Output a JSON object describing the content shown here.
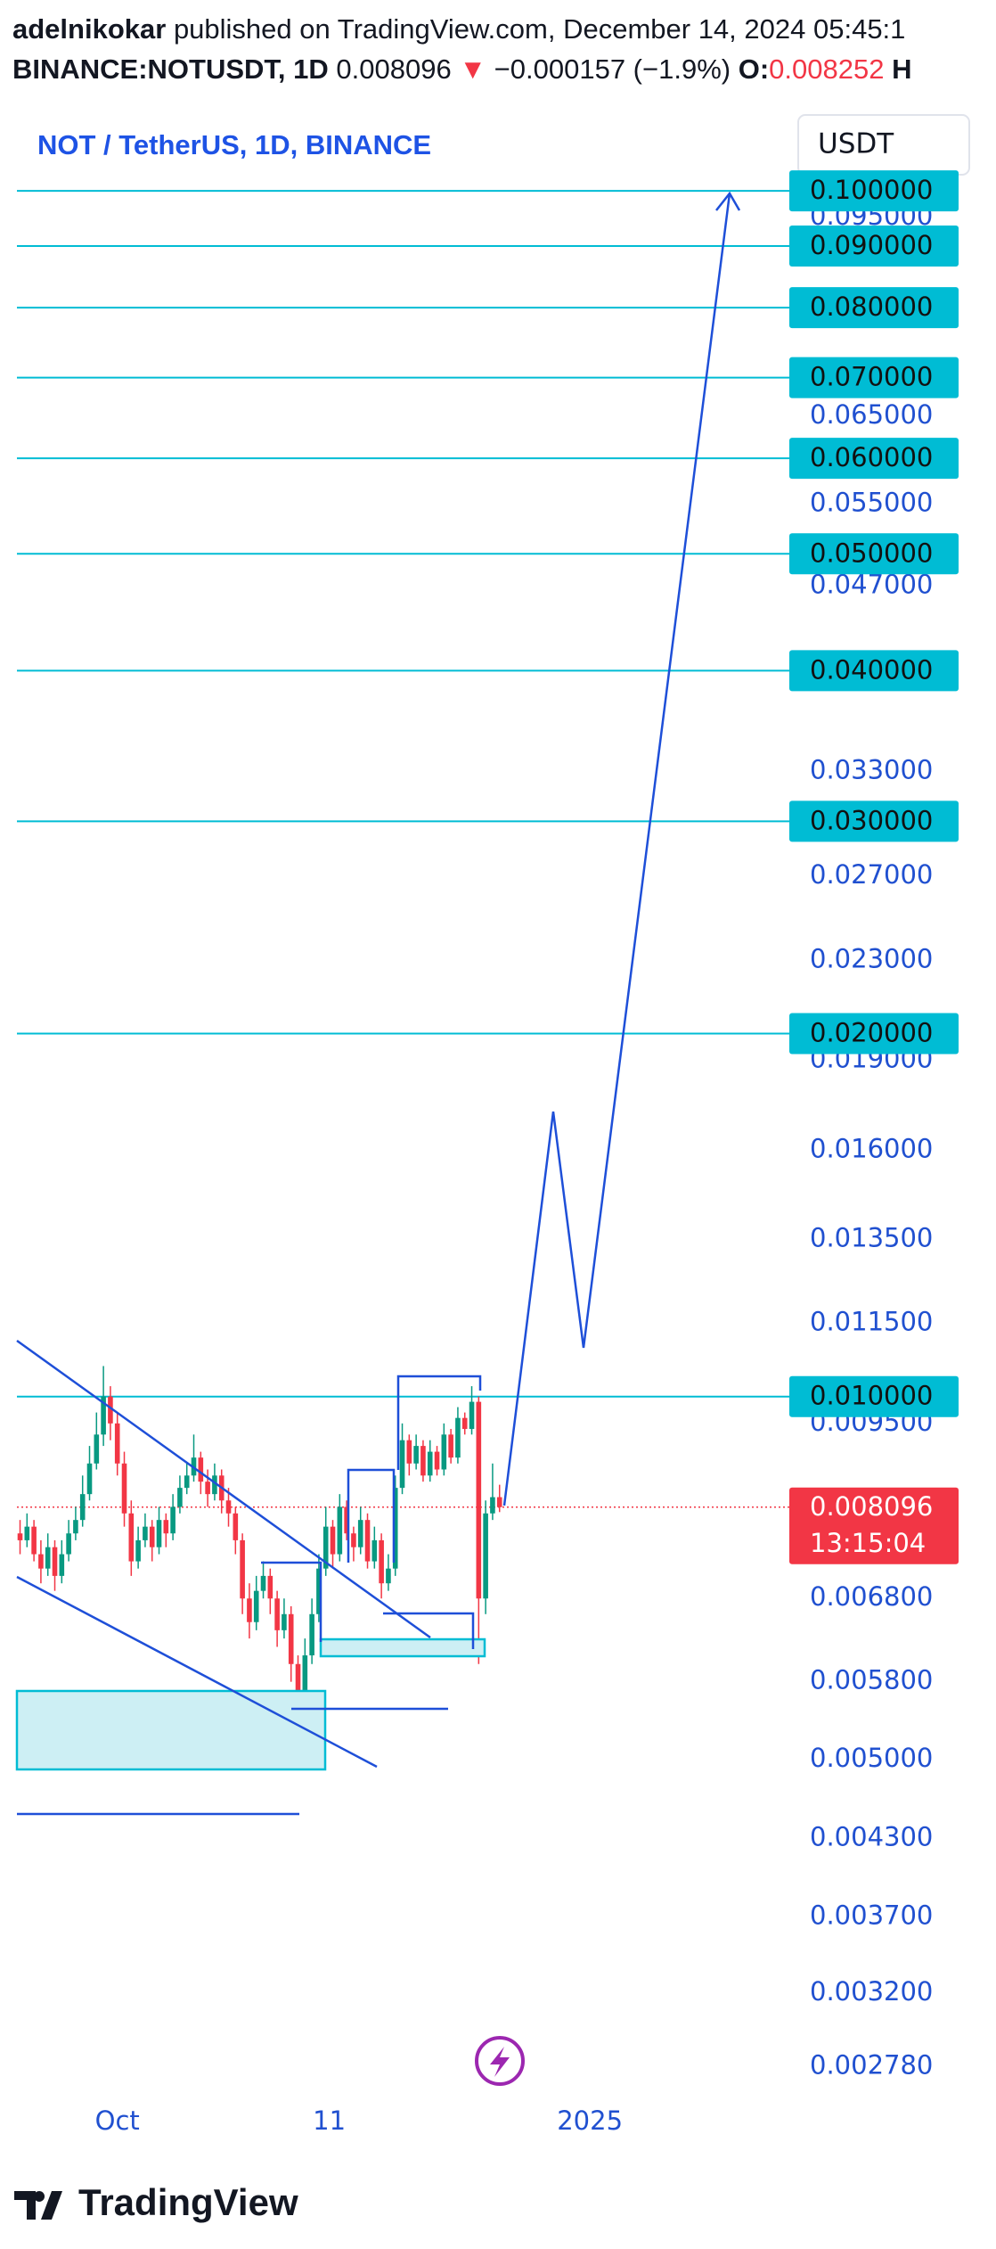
{
  "header": {
    "publisher": "adelnikokar",
    "published": "published on TradingView.com, December 14, 2024 05:45:1",
    "symbol": "BINANCE:NOTUSDT, 1D",
    "last": "0.008096",
    "direction": "▼",
    "change": "−0.000157 (−1.9%)",
    "open_label": "O:",
    "open": "0.008252",
    "high_label": "H"
  },
  "chart_data": {
    "type": "candlestick",
    "title": "NOT / TetherUS, 1D, BINANCE",
    "currency": "USDT",
    "log_scale": true,
    "up_color": "#089981",
    "down_color": "#f23645",
    "level_color": "#00bcd4",
    "ylim": [
      0.0026,
      0.115
    ],
    "yticks": [
      {
        "value": 0.095,
        "label": "0.095000"
      },
      {
        "value": 0.065,
        "label": "0.065000"
      },
      {
        "value": 0.055,
        "label": "0.055000"
      },
      {
        "value": 0.047,
        "label": "0.047000"
      },
      {
        "value": 0.033,
        "label": "0.033000"
      },
      {
        "value": 0.027,
        "label": "0.027000"
      },
      {
        "value": 0.023,
        "label": "0.023000"
      },
      {
        "value": 0.019,
        "label": "0.019000"
      },
      {
        "value": 0.016,
        "label": "0.016000"
      },
      {
        "value": 0.0135,
        "label": "0.013500"
      },
      {
        "value": 0.0115,
        "label": "0.011500"
      },
      {
        "value": 0.0095,
        "label": "0.009500"
      },
      {
        "value": 0.0068,
        "label": "0.006800"
      },
      {
        "value": 0.0058,
        "label": "0.005800"
      },
      {
        "value": 0.005,
        "label": "0.005000"
      },
      {
        "value": 0.0043,
        "label": "0.004300"
      },
      {
        "value": 0.0037,
        "label": "0.003700"
      },
      {
        "value": 0.0032,
        "label": "0.003200"
      },
      {
        "value": 0.00278,
        "label": "0.002780"
      }
    ],
    "levels": [
      {
        "value": 0.1,
        "label": "0.100000"
      },
      {
        "value": 0.09,
        "label": "0.090000"
      },
      {
        "value": 0.08,
        "label": "0.080000"
      },
      {
        "value": 0.07,
        "label": "0.070000"
      },
      {
        "value": 0.06,
        "label": "0.060000"
      },
      {
        "value": 0.05,
        "label": "0.050000"
      },
      {
        "value": 0.04,
        "label": "0.040000"
      },
      {
        "value": 0.03,
        "label": "0.030000"
      },
      {
        "value": 0.02,
        "label": "0.020000"
      },
      {
        "value": 0.01,
        "label": "0.010000"
      }
    ],
    "xlim": [
      -0.45,
      110.7
    ],
    "xticks": [
      {
        "value": 14,
        "label": "Oct"
      },
      {
        "value": 44.5,
        "label": "11"
      },
      {
        "value": 82,
        "label": "2025"
      }
    ],
    "candles": [
      [
        0.0077,
        0.0079,
        0.0074,
        0.0076
      ],
      [
        0.0076,
        0.008,
        0.0075,
        0.0078
      ],
      [
        0.0078,
        0.0079,
        0.0073,
        0.0074
      ],
      [
        0.0074,
        0.0076,
        0.007,
        0.0072
      ],
      [
        0.0072,
        0.0077,
        0.0071,
        0.0075
      ],
      [
        0.0075,
        0.0076,
        0.0069,
        0.0071
      ],
      [
        0.0071,
        0.0076,
        0.007,
        0.0074
      ],
      [
        0.0074,
        0.0079,
        0.0073,
        0.0077
      ],
      [
        0.0077,
        0.0081,
        0.0076,
        0.0079
      ],
      [
        0.0079,
        0.0086,
        0.0078,
        0.0083
      ],
      [
        0.0083,
        0.0091,
        0.0082,
        0.0088
      ],
      [
        0.0088,
        0.0097,
        0.0087,
        0.0093
      ],
      [
        0.0093,
        0.0106,
        0.0091,
        0.01
      ],
      [
        0.01,
        0.0102,
        0.0092,
        0.0095
      ],
      [
        0.0095,
        0.0097,
        0.0086,
        0.0088
      ],
      [
        0.0088,
        0.009,
        0.0078,
        0.008
      ],
      [
        0.008,
        0.0082,
        0.0071,
        0.0073
      ],
      [
        0.0073,
        0.0078,
        0.0072,
        0.0076
      ],
      [
        0.0076,
        0.008,
        0.0075,
        0.0078
      ],
      [
        0.0078,
        0.0079,
        0.0073,
        0.0075
      ],
      [
        0.0075,
        0.0081,
        0.0074,
        0.0079
      ],
      [
        0.0079,
        0.008,
        0.0075,
        0.0077
      ],
      [
        0.0077,
        0.0083,
        0.0076,
        0.0081
      ],
      [
        0.0081,
        0.0086,
        0.008,
        0.0084
      ],
      [
        0.0084,
        0.0088,
        0.0083,
        0.0086
      ],
      [
        0.0086,
        0.0093,
        0.0085,
        0.0089
      ],
      [
        0.0089,
        0.009,
        0.0083,
        0.0085
      ],
      [
        0.0085,
        0.0087,
        0.0081,
        0.0083
      ],
      [
        0.0083,
        0.0088,
        0.0082,
        0.0086
      ],
      [
        0.0086,
        0.0087,
        0.008,
        0.0082
      ],
      [
        0.0082,
        0.0084,
        0.0078,
        0.008
      ],
      [
        0.008,
        0.0081,
        0.0074,
        0.0076
      ],
      [
        0.0076,
        0.0077,
        0.0066,
        0.0068
      ],
      [
        0.0068,
        0.007,
        0.0063,
        0.0065
      ],
      [
        0.0065,
        0.0071,
        0.0064,
        0.0069
      ],
      [
        0.0069,
        0.0073,
        0.0068,
        0.0071
      ],
      [
        0.0071,
        0.0072,
        0.0066,
        0.0068
      ],
      [
        0.0068,
        0.0069,
        0.0062,
        0.0064
      ],
      [
        0.0064,
        0.0068,
        0.0063,
        0.0066
      ],
      [
        0.0066,
        0.0067,
        0.0058,
        0.006
      ],
      [
        0.006,
        0.0061,
        0.0054,
        0.0056
      ],
      [
        0.0056,
        0.0063,
        0.0055,
        0.0061
      ],
      [
        0.0061,
        0.0068,
        0.006,
        0.0066
      ],
      [
        0.0066,
        0.0074,
        0.0065,
        0.0072
      ],
      [
        0.0072,
        0.0081,
        0.0071,
        0.0078
      ],
      [
        0.0078,
        0.0079,
        0.0072,
        0.0074
      ],
      [
        0.0074,
        0.0083,
        0.0073,
        0.0081
      ],
      [
        0.0081,
        0.0082,
        0.0076,
        0.0077
      ],
      [
        0.0077,
        0.0078,
        0.0073,
        0.0075
      ],
      [
        0.0075,
        0.0081,
        0.0074,
        0.0079
      ],
      [
        0.0079,
        0.008,
        0.0072,
        0.0073
      ],
      [
        0.0073,
        0.0078,
        0.0072,
        0.0076
      ],
      [
        0.0076,
        0.0077,
        0.0068,
        0.007
      ],
      [
        0.007,
        0.0074,
        0.0069,
        0.0072
      ],
      [
        0.0072,
        0.0086,
        0.0071,
        0.0084
      ],
      [
        0.0084,
        0.0095,
        0.0083,
        0.0092
      ],
      [
        0.0092,
        0.0093,
        0.0086,
        0.0088
      ],
      [
        0.0088,
        0.0093,
        0.0087,
        0.0091
      ],
      [
        0.0091,
        0.0092,
        0.0085,
        0.0086
      ],
      [
        0.0086,
        0.0092,
        0.0085,
        0.009
      ],
      [
        0.009,
        0.0091,
        0.0086,
        0.0087
      ],
      [
        0.0087,
        0.0095,
        0.0086,
        0.0093
      ],
      [
        0.0093,
        0.0094,
        0.0088,
        0.0089
      ],
      [
        0.0089,
        0.0098,
        0.0088,
        0.0096
      ],
      [
        0.0096,
        0.0097,
        0.0093,
        0.0094
      ],
      [
        0.0094,
        0.0102,
        0.0093,
        0.0099
      ],
      [
        0.0099,
        0.01,
        0.006,
        0.0068
      ],
      [
        0.0068,
        0.0082,
        0.0066,
        0.008
      ],
      [
        0.008,
        0.0088,
        0.0079,
        0.008252
      ],
      [
        0.008252,
        0.00845,
        0.00802,
        0.008096
      ]
    ],
    "last_price": 0.008096,
    "countdown": "13:15:04"
  },
  "footer": {
    "brand": "TradingView"
  }
}
